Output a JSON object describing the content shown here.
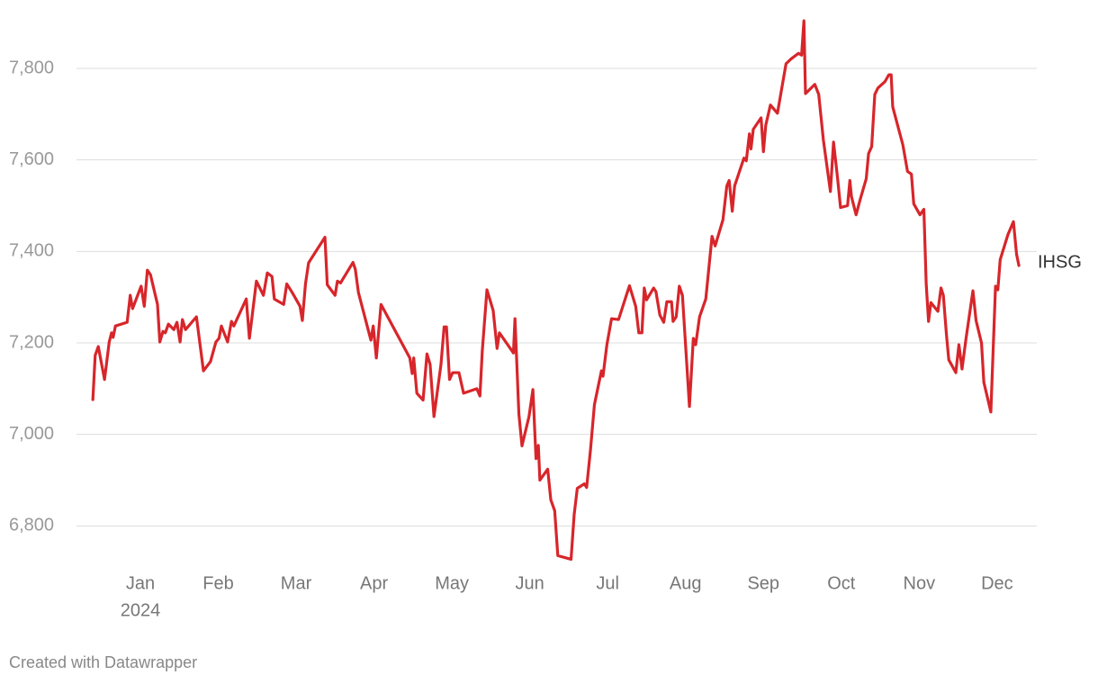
{
  "chart_data": {
    "type": "line",
    "x": [
      -0.61,
      -0.58,
      -0.54,
      -0.46,
      -0.4,
      -0.37,
      -0.35,
      -0.32,
      -0.17,
      -0.13,
      -0.1,
      0.01,
      0.05,
      0.09,
      0.13,
      0.22,
      0.25,
      0.29,
      0.32,
      0.36,
      0.43,
      0.47,
      0.51,
      0.54,
      0.58,
      0.72,
      0.81,
      0.9,
      0.97,
      1.01,
      1.04,
      1.12,
      1.17,
      1.2,
      1.36,
      1.4,
      1.49,
      1.58,
      1.63,
      1.69,
      1.72,
      1.84,
      1.88,
      1.95,
      2.05,
      2.08,
      2.12,
      2.16,
      2.37,
      2.4,
      2.5,
      2.53,
      2.57,
      2.73,
      2.76,
      2.8,
      2.96,
      2.99,
      3.03,
      3.09,
      3.46,
      3.49,
      3.51,
      3.55,
      3.63,
      3.68,
      3.72,
      3.77,
      3.86,
      3.9,
      3.93,
      3.97,
      4.01,
      4.09,
      4.15,
      4.32,
      4.36,
      4.39,
      4.45,
      4.53,
      4.58,
      4.61,
      4.79,
      4.81,
      4.86,
      4.9,
      4.99,
      5.04,
      5.08,
      5.11,
      5.13,
      5.23,
      5.27,
      5.32,
      5.36,
      5.53,
      5.57,
      5.61,
      5.7,
      5.73,
      5.78,
      5.83,
      5.92,
      5.94,
      5.99,
      6.05,
      6.14,
      6.24,
      6.28,
      6.36,
      6.4,
      6.44,
      6.47,
      6.5,
      6.59,
      6.62,
      6.67,
      6.72,
      6.76,
      6.82,
      6.84,
      6.88,
      6.92,
      6.96,
      7.05,
      7.1,
      7.13,
      7.18,
      7.26,
      7.34,
      7.38,
      7.48,
      7.53,
      7.56,
      7.6,
      7.63,
      7.75,
      7.78,
      7.82,
      7.84,
      7.87,
      7.97,
      8.0,
      8.03,
      8.09,
      8.18,
      8.29,
      8.35,
      8.45,
      8.49,
      8.52,
      8.54,
      8.66,
      8.71,
      8.77,
      8.86,
      8.9,
      8.95,
      8.99,
      9.08,
      9.11,
      9.13,
      9.19,
      9.24,
      9.32,
      9.35,
      9.39,
      9.43,
      9.47,
      9.56,
      9.61,
      9.64,
      9.66,
      9.79,
      9.85,
      9.9,
      9.93,
      10.01,
      10.06,
      10.09,
      10.12,
      10.15,
      10.24,
      10.28,
      10.31,
      10.35,
      10.38,
      10.47,
      10.51,
      10.55,
      10.6,
      10.69,
      10.73,
      10.8,
      10.83,
      10.92,
      10.98,
      11.01,
      11.04,
      11.14,
      11.21,
      11.25,
      11.28
    ],
    "series": [
      {
        "name": "IHSG",
        "color": "#d7262b",
        "values": [
          7076,
          7173,
          7192,
          7120,
          7202,
          7222,
          7212,
          7237,
          7245,
          7304,
          7275,
          7324,
          7280,
          7359,
          7349,
          7284,
          7202,
          7225,
          7222,
          7241,
          7229,
          7245,
          7202,
          7251,
          7229,
          7257,
          7139,
          7159,
          7202,
          7210,
          7237,
          7202,
          7247,
          7237,
          7296,
          7210,
          7335,
          7304,
          7353,
          7345,
          7296,
          7284,
          7329,
          7310,
          7280,
          7249,
          7329,
          7375,
          7431,
          7327,
          7304,
          7335,
          7331,
          7376,
          7361,
          7310,
          7206,
          7237,
          7167,
          7284,
          7167,
          7133,
          7167,
          7090,
          7075,
          7176,
          7153,
          7039,
          7153,
          7235,
          7235,
          7120,
          7135,
          7135,
          7090,
          7100,
          7084,
          7182,
          7316,
          7271,
          7188,
          7222,
          7178,
          7253,
          7045,
          6975,
          7039,
          7098,
          6947,
          6976,
          6900,
          6924,
          6857,
          6833,
          6735,
          6727,
          6825,
          6882,
          6892,
          6884,
          6967,
          7065,
          7139,
          7127,
          7196,
          7253,
          7251,
          7304,
          7325,
          7280,
          7222,
          7222,
          7320,
          7294,
          7320,
          7312,
          7261,
          7245,
          7290,
          7290,
          7247,
          7257,
          7324,
          7304,
          7061,
          7210,
          7196,
          7257,
          7296,
          7433,
          7412,
          7469,
          7543,
          7555,
          7488,
          7543,
          7604,
          7598,
          7657,
          7624,
          7667,
          7692,
          7618,
          7676,
          7720,
          7702,
          7810,
          7820,
          7833,
          7829,
          7904,
          7745,
          7765,
          7743,
          7643,
          7531,
          7639,
          7563,
          7496,
          7500,
          7555,
          7520,
          7480,
          7512,
          7559,
          7614,
          7629,
          7743,
          7757,
          7771,
          7786,
          7786,
          7716,
          7633,
          7575,
          7569,
          7504,
          7480,
          7492,
          7329,
          7247,
          7288,
          7269,
          7320,
          7304,
          7218,
          7163,
          7135,
          7196,
          7143,
          7208,
          7314,
          7249,
          7200,
          7114,
          7049,
          7324,
          7316,
          7382,
          7437,
          7465,
          7394,
          7369
        ]
      }
    ],
    "xlim": [
      -0.82,
      11.51
    ],
    "xticks": [
      {
        "value": 0,
        "label": "Jan"
      },
      {
        "value": 1,
        "label": "Feb"
      },
      {
        "value": 2,
        "label": "Mar"
      },
      {
        "value": 3,
        "label": "Apr"
      },
      {
        "value": 4,
        "label": "May"
      },
      {
        "value": 5,
        "label": "Jun"
      },
      {
        "value": 6,
        "label": "Jul"
      },
      {
        "value": 7,
        "label": "Aug"
      },
      {
        "value": 8,
        "label": "Sep"
      },
      {
        "value": 9,
        "label": "Oct"
      },
      {
        "value": 10,
        "label": "Nov"
      },
      {
        "value": 11,
        "label": "Dec"
      }
    ],
    "xtick_year": "2024",
    "ylim": [
      6720,
      7920
    ],
    "yticks": [
      {
        "value": 6800,
        "label": "6,800"
      },
      {
        "value": 7000,
        "label": "7,000"
      },
      {
        "value": 7200,
        "label": "7,200"
      },
      {
        "value": 7400,
        "label": "7,400"
      },
      {
        "value": 7600,
        "label": "7,600"
      },
      {
        "value": 7800,
        "label": "7,800"
      }
    ],
    "grid": true,
    "footer": "Created with Datawrapper"
  }
}
